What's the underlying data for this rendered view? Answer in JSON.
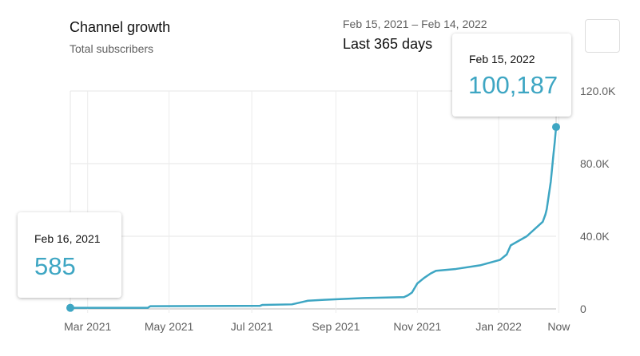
{
  "header": {
    "title": "Channel growth",
    "subtitle": "Total subscribers",
    "date_range": "Feb 15, 2021 – Feb 14, 2022",
    "period": "Last 365 days"
  },
  "tooltips": {
    "start": {
      "date": "Feb 16, 2021",
      "value": "585"
    },
    "end": {
      "date": "Feb 15, 2022",
      "value": "100,187"
    }
  },
  "chart_data": {
    "type": "line",
    "title": "Channel growth",
    "ylabel": "Total subscribers",
    "xlabel": "",
    "x_unit": "days since Feb 16, 2021",
    "xlim": [
      0,
      364
    ],
    "ylim": [
      0,
      120000
    ],
    "grid": true,
    "line_color": "#3ea6c3",
    "x_ticks": [
      {
        "label": "Mar 2021",
        "day": 13
      },
      {
        "label": "May 2021",
        "day": 74
      },
      {
        "label": "Jul 2021",
        "day": 136
      },
      {
        "label": "Sep 2021",
        "day": 199
      },
      {
        "label": "Nov 2021",
        "day": 260
      },
      {
        "label": "Jan 2022",
        "day": 321
      },
      {
        "label": "Now",
        "day": 366
      }
    ],
    "y_ticks": [
      {
        "label": "0",
        "value": 0
      },
      {
        "label": "40.0K",
        "value": 40000
      },
      {
        "label": "80.0K",
        "value": 80000
      },
      {
        "label": "120.0K",
        "value": 120000
      }
    ],
    "series": [
      {
        "name": "Total subscribers",
        "x": [
          0,
          58,
          60,
          142,
          144,
          166,
          172,
          178,
          190,
          220,
          250,
          253,
          256,
          260,
          265,
          270,
          274,
          289,
          307,
          322,
          327,
          330,
          342,
          354,
          356,
          357,
          360,
          362,
          363,
          364
        ],
        "values": [
          585,
          600,
          1500,
          1700,
          2200,
          2500,
          3500,
          4500,
          5000,
          6000,
          6500,
          7500,
          9000,
          14000,
          17000,
          19500,
          21000,
          22000,
          24000,
          27000,
          30000,
          35000,
          40000,
          48000,
          52000,
          55000,
          70000,
          85000,
          92000,
          100187
        ]
      }
    ]
  }
}
